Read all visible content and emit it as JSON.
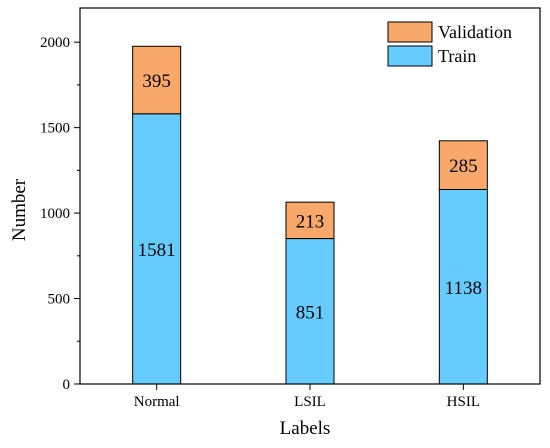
{
  "chart_data": {
    "type": "bar",
    "stacked": true,
    "categories": [
      "Normal",
      "LSIL",
      "HSIL"
    ],
    "series": [
      {
        "name": "Train",
        "values": [
          1581,
          851,
          1138
        ],
        "color": "#66ccff"
      },
      {
        "name": "Validation",
        "values": [
          395,
          213,
          285
        ],
        "color": "#f7a86a"
      }
    ],
    "xlabel": "Labels",
    "ylabel": "Number",
    "ylim": [
      0,
      2200
    ],
    "yticks": [
      0,
      500,
      1000,
      1500,
      2000
    ],
    "legend": {
      "position": "top-right",
      "order": [
        "Validation",
        "Train"
      ]
    },
    "grid": false
  }
}
